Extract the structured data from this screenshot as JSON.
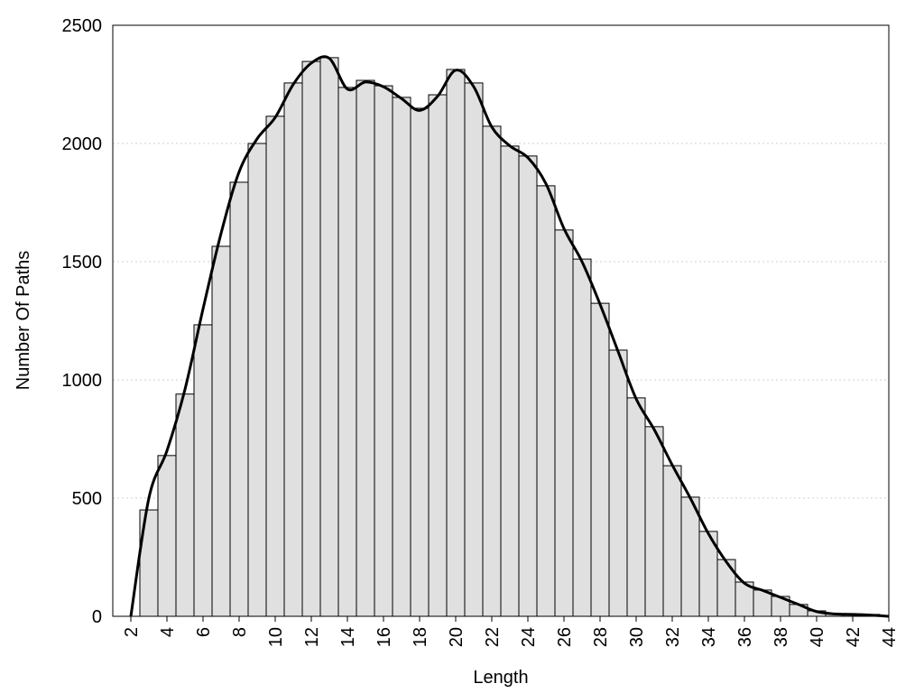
{
  "chart_data": {
    "type": "bar",
    "x_label": "Length",
    "y_label": "Number Of Paths",
    "x": [
      3,
      4,
      5,
      6,
      7,
      8,
      9,
      10,
      11,
      12,
      13,
      14,
      15,
      16,
      17,
      18,
      19,
      20,
      21,
      22,
      23,
      24,
      25,
      26,
      27,
      28,
      29,
      30,
      31,
      32,
      33,
      34,
      35,
      36,
      37,
      38,
      39,
      40,
      41,
      42,
      43
    ],
    "values": [
      450,
      680,
      940,
      1233,
      1565,
      1836,
      2000,
      2115,
      2256,
      2347,
      2363,
      2237,
      2267,
      2244,
      2195,
      2149,
      2206,
      2313,
      2256,
      2073,
      1989,
      1947,
      1821,
      1634,
      1511,
      1324,
      1126,
      924,
      802,
      637,
      504,
      359,
      240,
      145,
      111,
      84,
      50,
      23,
      11,
      10,
      8
    ],
    "color": "#e0e0e0",
    "curve": {
      "type": "line",
      "color": "#000000",
      "x": [
        2,
        3,
        4,
        5,
        6,
        7,
        8,
        9,
        10,
        11,
        12,
        13,
        14,
        15,
        16,
        17,
        18,
        19,
        20,
        21,
        22,
        23,
        24,
        25,
        26,
        27,
        28,
        29,
        30,
        31,
        32,
        33,
        34,
        35,
        36,
        37,
        38,
        39,
        40,
        41,
        42,
        43,
        44
      ],
      "values": [
        0,
        500,
        700,
        960,
        1300,
        1620,
        1880,
        2020,
        2110,
        2250,
        2340,
        2360,
        2230,
        2260,
        2240,
        2190,
        2140,
        2200,
        2310,
        2240,
        2070,
        1990,
        1940,
        1830,
        1640,
        1500,
        1320,
        1120,
        920,
        790,
        640,
        500,
        350,
        230,
        140,
        110,
        80,
        50,
        20,
        10,
        8,
        5,
        0
      ]
    },
    "xlim": [
      1,
      44
    ],
    "ylim": [
      0,
      2500
    ],
    "xticks": [
      2,
      4,
      6,
      8,
      10,
      12,
      14,
      16,
      18,
      20,
      22,
      24,
      26,
      28,
      30,
      32,
      34,
      36,
      38,
      40,
      42,
      44
    ],
    "yticks": [
      0,
      500,
      1000,
      1500,
      2000,
      2500
    ],
    "grid": true
  }
}
